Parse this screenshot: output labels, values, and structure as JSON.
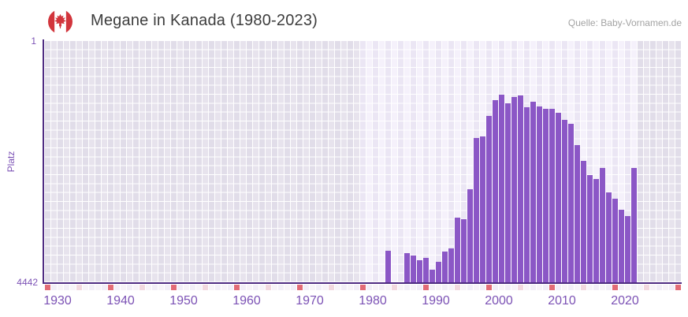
{
  "header": {
    "title": "Megane in Kanada (1980-2023)",
    "source": "Quelle: Baby-Vornamen.de",
    "flag_icon": "canada-flag"
  },
  "chart_data": {
    "type": "bar",
    "title": "Megane in Kanada (1980-2023)",
    "xlabel": "",
    "ylabel": "Platz",
    "y_axis": {
      "top_label": "1",
      "bottom_label": "4442",
      "min": 1,
      "max": 4442,
      "inverted": true
    },
    "x_axis": {
      "start": 1930,
      "end": 2030,
      "tick_labels": [
        "1930",
        "1940",
        "1950",
        "1960",
        "1970",
        "1980",
        "1990",
        "2000",
        "2010",
        "2020"
      ],
      "tick_step": 10,
      "decade_marker_years_mod": 10,
      "half_decade_marker_years_mod": 5
    },
    "highlight_range": [
      1980,
      2023
    ],
    "grid": true,
    "legend": "none",
    "series": [
      {
        "name": "Platz",
        "years": [
          1984,
          1987,
          1988,
          1989,
          1990,
          1991,
          1992,
          1993,
          1994,
          1995,
          1996,
          1997,
          1998,
          1999,
          2000,
          2001,
          2002,
          2003,
          2004,
          2005,
          2006,
          2007,
          2008,
          2009,
          2010,
          2011,
          2012,
          2013,
          2014,
          2015,
          2016,
          2017,
          2018,
          2019,
          2020,
          2021,
          2022,
          2023
        ],
        "ranks": [
          3860,
          3905,
          3950,
          4035,
          3990,
          4210,
          4065,
          3875,
          3815,
          3250,
          3280,
          2725,
          1785,
          1755,
          1380,
          1090,
          990,
          1150,
          1025,
          1005,
          1220,
          1120,
          1200,
          1245,
          1245,
          1325,
          1450,
          1530,
          1920,
          2200,
          2465,
          2540,
          2340,
          2790,
          2900,
          3100,
          3230,
          2340
        ]
      }
    ]
  },
  "colors": {
    "bar": "#8b57c6",
    "axis": "#4f2c82",
    "tick": "#7c52b5",
    "title": "#3d3d3d",
    "source": "#a3a3a3",
    "grid_base_even": "#e1dde9",
    "grid_base_odd": "#e7e3ed",
    "grid_hi_even": "#ebe6f4",
    "grid_hi_odd": "#f5f1fb",
    "strip_a": "#f2eef7",
    "strip_b": "#f7f3f8",
    "strip_red": "#e26b76",
    "strip_pink": "#f2d8df",
    "flag_red": "#d2353c",
    "flag_white": "#ffffff"
  }
}
